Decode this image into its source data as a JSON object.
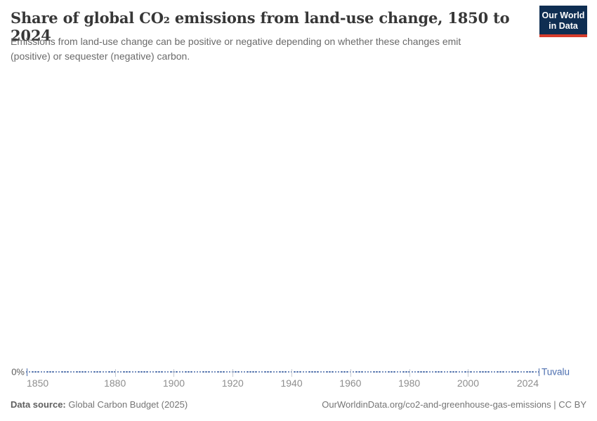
{
  "header": {
    "title": "Share of global CO₂ emissions from land-use change, 1850 to 2024",
    "subtitle": "Emissions from land-use change can be positive or negative depending on whether these changes emit (positive) or sequester (negative) carbon.",
    "logo": {
      "line1": "Our World",
      "line2": "in Data",
      "bg_color": "#0f2e52",
      "accent_color": "#d73c2c"
    }
  },
  "axis": {
    "y_zero_label": "0%",
    "entity_label": "Tuvalu"
  },
  "footer": {
    "source_label": "Data source:",
    "source_value": " Global Carbon Budget (2025)",
    "link": "OurWorldinData.org/co2-and-greenhouse-gas-emissions | CC BY"
  },
  "chart_data": {
    "type": "line",
    "title": "Share of global CO₂ emissions from land-use change, 1850 to 2024",
    "series": [
      {
        "name": "Tuvalu",
        "x_start": 1850,
        "x_end": 2024,
        "constant_value": 0,
        "unit": "%"
      }
    ],
    "points": [
      {
        "x": 1850,
        "y": 0
      },
      {
        "x": 1880,
        "y": 0
      },
      {
        "x": 1900,
        "y": 0
      },
      {
        "x": 1920,
        "y": 0
      },
      {
        "x": 1940,
        "y": 0
      },
      {
        "x": 1960,
        "y": 0
      },
      {
        "x": 1980,
        "y": 0
      },
      {
        "x": 2000,
        "y": 0
      },
      {
        "x": 2024,
        "y": 0
      }
    ],
    "values_note": "Tuvalu's share is 0% for every year from 1850 to 2024 (flat dotted line along the zero axis)",
    "x_range": [
      1850,
      2024
    ],
    "x_ticks": [
      1850,
      1880,
      1900,
      1920,
      1940,
      1960,
      1980,
      2000,
      2024
    ],
    "y_tick_labels": [
      "0%"
    ],
    "xlabel": "",
    "ylabel": "",
    "grid": false,
    "legend_position": "end-of-line",
    "line_style": "dotted-markers",
    "line_color": "#4c6da9",
    "label_color": "#4d6fb0",
    "tick_color": "#c6cbd4"
  }
}
